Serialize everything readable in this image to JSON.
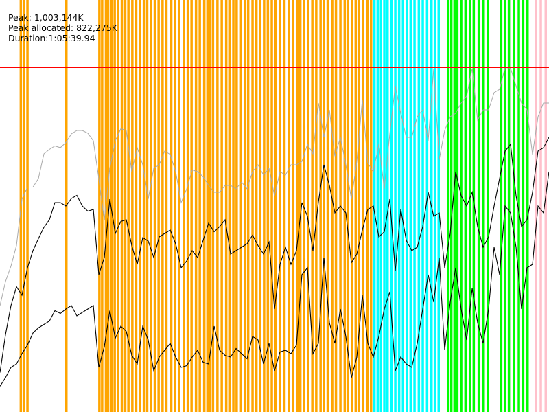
{
  "header": {
    "peak_text": "Peak: 1,003,144K",
    "peak_allocated_text": "Peak allocated: 822,275K",
    "duration_text": "Duration:1:05:39.94"
  },
  "colors": {
    "background": "#ffffff",
    "peak_line": "#ff0000",
    "upper_series": "#a9a9a9",
    "middle_series": "#000000",
    "lower_series": "#000000",
    "stripe_colors": [
      "#ffa500",
      "#00ffff",
      "#00ff00",
      "#ffc0cb"
    ]
  },
  "chart_data": {
    "type": "line",
    "title": "",
    "xlabel": "",
    "ylabel": "",
    "x_range": [
      0,
      100
    ],
    "y_range_K": [
      0,
      1200000
    ],
    "grid": false,
    "legend": "none",
    "peak_K": 1003144,
    "peak_allocated_K": 822275,
    "duration": "1:05:39.94",
    "stripes": [
      {
        "color": "orange",
        "x": [
          3.8,
          4.4,
          5.0,
          12.1,
          18.1,
          18.6,
          19.3,
          19.7,
          20.3,
          20.9,
          21.5,
          22.2,
          22.8,
          23.4,
          24.1,
          24.8,
          25.5,
          26.2,
          26.8,
          27.5,
          28.2,
          28.9,
          29.6,
          30.3,
          31.2,
          31.9,
          32.6,
          33.5,
          34.2,
          34.9,
          35.7,
          36.4,
          37.2,
          37.8,
          38.2,
          38.8,
          39.6,
          40.4,
          41.2,
          41.8,
          42.5,
          43.1,
          43.8,
          44.6,
          45.2,
          46.0,
          46.7,
          47.4,
          48.1,
          48.8,
          49.5,
          50.2,
          51.0,
          51.8,
          52.6,
          53.4,
          54.2,
          54.7,
          55.4,
          56.1,
          56.9,
          57.6,
          58.4,
          59.0,
          59.7,
          60.5,
          61.2,
          62.0,
          62.8,
          63.4,
          64.1,
          64.8,
          65.4,
          66.1,
          66.9,
          67.6
        ]
      },
      {
        "color": "cyan",
        "x": [
          68.2,
          68.8,
          69.4,
          70.0,
          70.6,
          71.3,
          72.0,
          72.7,
          73.4,
          74.1,
          74.8,
          75.5,
          76.3,
          77.0,
          77.8,
          78.6,
          79.2,
          79.9
        ]
      },
      {
        "color": "lime",
        "x": [
          81.6,
          82.2,
          82.8,
          83.3,
          84.0,
          84.8,
          85.6,
          86.3,
          87.2,
          88.1,
          88.9,
          91.3,
          92.0,
          92.7,
          93.6,
          94.5,
          95.3,
          96.1
        ]
      },
      {
        "color": "pink",
        "x": [
          97.6,
          98.5,
          99.4
        ]
      }
    ],
    "series": [
      {
        "color": "gray",
        "x": [
          0,
          1,
          2,
          3,
          4,
          5,
          6,
          7,
          8,
          9,
          10,
          11,
          12,
          13,
          14,
          15,
          16,
          17,
          18,
          19,
          20,
          21,
          22,
          23,
          24,
          25,
          26,
          27,
          28,
          29,
          30,
          31,
          32,
          33,
          34,
          35,
          36,
          37,
          38,
          39,
          40,
          41,
          42,
          43,
          44,
          45,
          46,
          47,
          48,
          49,
          50,
          51,
          52,
          53,
          54,
          55,
          56,
          57,
          58,
          59,
          60,
          61,
          62,
          63,
          64,
          65,
          66,
          67,
          68,
          69,
          70,
          71,
          72,
          73,
          74,
          75,
          76,
          77,
          78,
          79,
          80,
          81,
          82,
          83,
          84,
          85,
          86,
          87,
          88,
          89,
          90,
          91,
          92,
          93,
          94,
          95,
          96,
          97,
          98,
          99,
          100
        ],
        "values_K": [
          310000,
          380000,
          425000,
          485000,
          620000,
          655000,
          655000,
          680000,
          752000,
          765000,
          775000,
          770000,
          785000,
          810000,
          820000,
          820000,
          812000,
          790000,
          680000,
          560000,
          710000,
          790000,
          825000,
          820000,
          700000,
          770000,
          720000,
          620000,
          710000,
          720000,
          760000,
          750000,
          700000,
          610000,
          650000,
          705000,
          700000,
          685000,
          660000,
          640000,
          640000,
          660000,
          660000,
          650000,
          670000,
          650000,
          700000,
          720000,
          690000,
          710000,
          630000,
          700000,
          690000,
          720000,
          720000,
          730000,
          780000,
          752000,
          900000,
          800000,
          880000,
          745000,
          800000,
          720000,
          620000,
          730000,
          910000,
          725000,
          700000,
          780000,
          650000,
          810000,
          950000,
          870000,
          800000,
          800000,
          860000,
          880000,
          790000,
          1000000,
          735000,
          820000,
          860000,
          870000,
          900000,
          920000,
          1000000,
          850000,
          880000,
          880000,
          930000,
          940000,
          1003144,
          1001500,
          950000,
          900000,
          880000,
          750000,
          860000,
          900000,
          900000
        ]
      },
      {
        "color": "black",
        "x": [
          0,
          1,
          2,
          3,
          4,
          5,
          6,
          7,
          8,
          9,
          10,
          11,
          12,
          13,
          14,
          15,
          16,
          17,
          18,
          19,
          20,
          21,
          22,
          23,
          24,
          25,
          26,
          27,
          28,
          29,
          30,
          31,
          32,
          33,
          34,
          35,
          36,
          37,
          38,
          39,
          40,
          41,
          42,
          43,
          44,
          45,
          46,
          47,
          48,
          49,
          50,
          51,
          52,
          53,
          54,
          55,
          56,
          57,
          58,
          59,
          60,
          61,
          62,
          63,
          64,
          65,
          66,
          67,
          68,
          69,
          70,
          71,
          72,
          73,
          74,
          75,
          76,
          77,
          78,
          79,
          80,
          81,
          82,
          83,
          84,
          85,
          86,
          87,
          88,
          89,
          90,
          91,
          92,
          93,
          94,
          95,
          96,
          97,
          98,
          99,
          100
        ],
        "values_K": [
          115000,
          225000,
          310000,
          365000,
          340000,
          420000,
          470000,
          505000,
          538000,
          560000,
          610000,
          610000,
          600000,
          622000,
          631000,
          600000,
          585000,
          590000,
          400000,
          450000,
          620000,
          520000,
          555000,
          560000,
          485000,
          430000,
          508000,
          498000,
          450000,
          510000,
          520000,
          530000,
          490000,
          420000,
          440000,
          470000,
          450000,
          500000,
          550000,
          525000,
          540000,
          560000,
          460000,
          470000,
          480000,
          490000,
          515000,
          485000,
          460000,
          495000,
          300000,
          430000,
          480000,
          430000,
          470000,
          610000,
          570000,
          470000,
          612000,
          720000,
          660000,
          580000,
          600000,
          580000,
          435000,
          460000,
          530000,
          590000,
          600000,
          510000,
          525000,
          620000,
          410000,
          590000,
          500000,
          470000,
          480000,
          540000,
          640000,
          570000,
          580000,
          420000,
          520000,
          700000,
          630000,
          600000,
          640000,
          540000,
          480000,
          510000,
          600000,
          680000,
          760000,
          780000,
          630000,
          540000,
          560000,
          640000,
          760000,
          770000,
          800000
        ]
      },
      {
        "color": "black",
        "x": [
          0,
          1,
          2,
          3,
          4,
          5,
          6,
          7,
          8,
          9,
          10,
          11,
          12,
          13,
          14,
          15,
          16,
          17,
          18,
          19,
          20,
          21,
          22,
          23,
          24,
          25,
          26,
          27,
          28,
          29,
          30,
          31,
          32,
          33,
          34,
          35,
          36,
          37,
          38,
          39,
          40,
          41,
          42,
          43,
          44,
          45,
          46,
          47,
          48,
          49,
          50,
          51,
          52,
          53,
          54,
          55,
          56,
          57,
          58,
          59,
          60,
          61,
          62,
          63,
          64,
          65,
          66,
          67,
          68,
          69,
          70,
          71,
          72,
          73,
          74,
          75,
          76,
          77,
          78,
          79,
          80,
          81,
          82,
          83,
          84,
          85,
          86,
          87,
          88,
          89,
          90,
          91,
          92,
          93,
          94,
          95,
          96,
          97,
          98,
          99,
          100
        ],
        "values_K": [
          75000,
          100000,
          130000,
          140000,
          170000,
          195000,
          230000,
          245000,
          255000,
          265000,
          295000,
          287000,
          300000,
          310000,
          280000,
          290000,
          300000,
          310000,
          130000,
          190000,
          295000,
          215000,
          250000,
          235000,
          165000,
          140000,
          250000,
          210000,
          120000,
          160000,
          180000,
          200000,
          160000,
          130000,
          135000,
          160000,
          180000,
          145000,
          140000,
          250000,
          180000,
          165000,
          160000,
          185000,
          170000,
          155000,
          220000,
          210000,
          140000,
          200000,
          120000,
          175000,
          180000,
          170000,
          195000,
          400000,
          420000,
          170000,
          200000,
          450000,
          260000,
          200000,
          300000,
          220000,
          100000,
          160000,
          340000,
          200000,
          160000,
          220000,
          300000,
          350000,
          120000,
          160000,
          140000,
          130000,
          200000,
          300000,
          400000,
          320000,
          450000,
          180000,
          320000,
          420000,
          300000,
          210000,
          360000,
          260000,
          200000,
          300000,
          480000,
          400000,
          600000,
          580000,
          480000,
          300000,
          420000,
          430000,
          600000,
          580000,
          700000
        ]
      }
    ]
  }
}
